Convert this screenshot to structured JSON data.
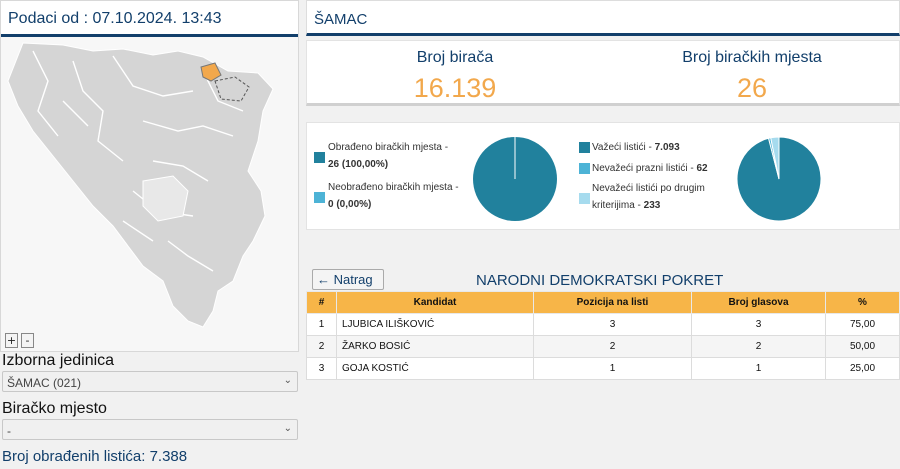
{
  "left": {
    "date_label": "Podaci od : 07.10.2024. 13:43",
    "zoom_in": "+",
    "zoom_out": "-",
    "unit_label": "Izborna jedinica",
    "unit_value": "ŠAMAC (021)",
    "station_label": "Biračko mjesto",
    "station_value": "-",
    "processed_label": "Broj obrađenih listića: 7.388"
  },
  "right": {
    "title": "ŠAMAC",
    "voters_label": "Broj birača",
    "voters_value": "16.139",
    "stations_label": "Broj biračkih mjesta",
    "stations_value": "26"
  },
  "pie1": {
    "legend": [
      {
        "line1": "Obrađeno biračkih mjesta -",
        "line2": "26 (100,00%)",
        "color": "#21819d"
      },
      {
        "line1": "Neobrađeno biračkih mjesta -",
        "line2": "0 (0,00%)",
        "color": "#4db3d6"
      }
    ],
    "values": [
      26,
      0
    ]
  },
  "pie2": {
    "legend": [
      {
        "text": "Važeći listići - ",
        "num": "7.093",
        "color": "#21819d"
      },
      {
        "text": "Nevažeći prazni listići - ",
        "num": "62",
        "color": "#4db3d6"
      },
      {
        "line1": "Nevažeći listići po drugim",
        "line2": "kriterijima - ",
        "num": "233",
        "color": "#a6dbee"
      }
    ],
    "values": [
      7093,
      62,
      233
    ]
  },
  "candidates": {
    "back_label": "Natrag",
    "party": "NARODNI DEMOKRATSKI POKRET",
    "headers": [
      "#",
      "Kandidat",
      "Pozicija na listi",
      "Broj glasova",
      "%"
    ],
    "rows": [
      [
        "1",
        "LJUBICA ILIŠKOVIĆ",
        "3",
        "3",
        "75,00"
      ],
      [
        "2",
        "ŽARKO BOSIĆ",
        "2",
        "2",
        "50,00"
      ],
      [
        "3",
        "GOJA KOSTIĆ",
        "1",
        "1",
        "25,00"
      ]
    ]
  },
  "colors": {
    "accent": "#123f6b",
    "orange": "#f2a84c",
    "teal": "#21819d"
  }
}
